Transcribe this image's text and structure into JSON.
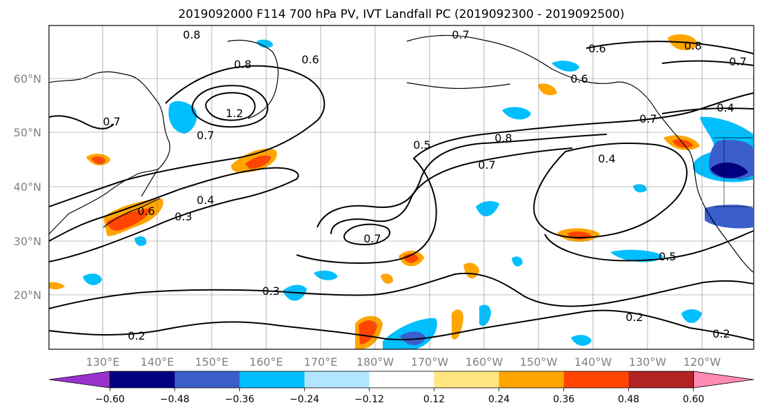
{
  "title": "2019092000 F114 700 hPa PV, IVT Landfall PC (2019092300 - 2019092500)",
  "lat_labels": [
    "60°N",
    "50°N",
    "40°N",
    "30°N",
    "20°N"
  ],
  "lon_labels": [
    "130°E",
    "140°E",
    "150°E",
    "160°E",
    "170°E",
    "180°W",
    "170°W",
    "160°W",
    "150°W",
    "140°W",
    "130°W",
    "120°W"
  ],
  "colorbar": {
    "ticks": [
      "−0.60",
      "−0.48",
      "−0.36",
      "−0.24",
      "−0.12",
      "0.12",
      "0.24",
      "0.36",
      "0.48",
      "0.60"
    ],
    "colors": [
      "#9932cc",
      "#000080",
      "#3a5fcd",
      "#00bfff",
      "#b2e5ff",
      "#ffffff",
      "#ffe680",
      "#ffa500",
      "#ff4500",
      "#b22222",
      "#ff8cb4"
    ]
  },
  "contour_labels": [
    "0.8",
    "0.8",
    "0.6",
    "0.7",
    "0.7",
    "1.2",
    "0.7",
    "0.6",
    "0.6",
    "0.8",
    "0.7",
    "0.4",
    "0.7",
    "0.5",
    "0.8",
    "0.7",
    "0.4",
    "0.4",
    "0.3",
    "0.6",
    "0.7",
    "0.5",
    "0.3",
    "0.2",
    "0.2",
    "0.2"
  ],
  "map_colors": {
    "pv_contour": "#000000",
    "coastline": "#000000",
    "grid": "#808080"
  }
}
